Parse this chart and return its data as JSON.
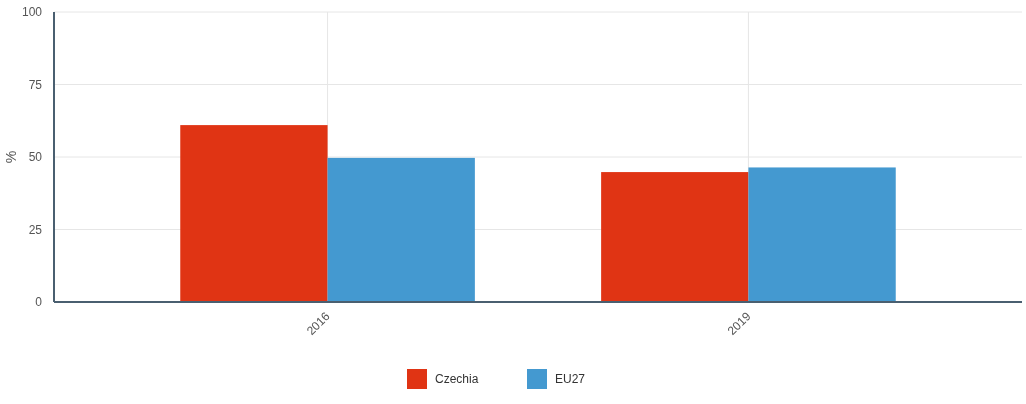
{
  "chart_data": {
    "type": "bar",
    "ylabel": "%",
    "categories": [
      "2016",
      "2019"
    ],
    "series": [
      {
        "name": "Czechia",
        "color": "#e03414",
        "values": [
          61.0,
          44.8
        ]
      },
      {
        "name": "EU27",
        "color": "#4499d0",
        "values": [
          49.7,
          46.4
        ]
      }
    ],
    "ylim": [
      0,
      100
    ],
    "yticks": [
      0,
      25,
      50,
      75,
      100
    ],
    "grid": true,
    "legend": "bottom"
  }
}
